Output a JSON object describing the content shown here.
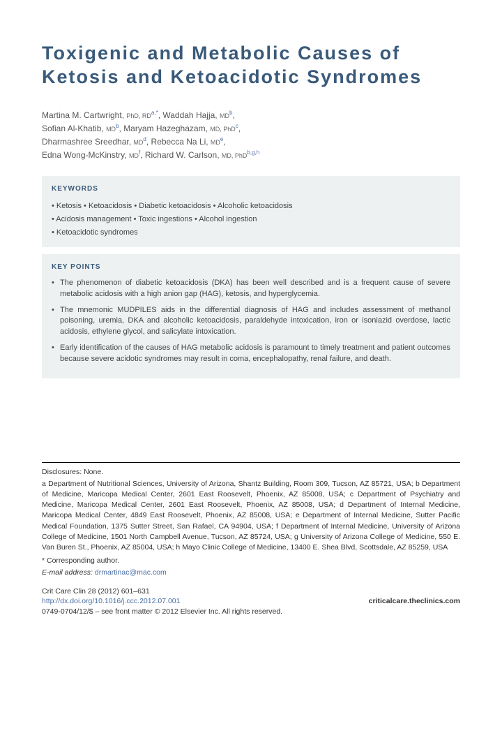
{
  "title": "Toxigenic and Metabolic Causes of Ketosis and Ketoacidotic Syndromes",
  "authors": [
    {
      "name": "Martina M. Cartwright",
      "credentials": "PhD, RD",
      "affiliations": "a,*"
    },
    {
      "name": "Waddah Hajja",
      "credentials": "MD",
      "affiliations": "b"
    },
    {
      "name": "Sofian Al-Khatib",
      "credentials": "MD",
      "affiliations": "b"
    },
    {
      "name": "Maryam Hazeghazam",
      "credentials": "MD, PhD",
      "affiliations": "c"
    },
    {
      "name": "Dharmashree Sreedhar",
      "credentials": "MD",
      "affiliations": "d"
    },
    {
      "name": "Rebecca Na Li",
      "credentials": "MD",
      "affiliations": "e"
    },
    {
      "name": "Edna Wong-McKinstry",
      "credentials": "MD",
      "affiliations": "f"
    },
    {
      "name": "Richard W. Carlson",
      "credentials": "MD, PhD",
      "affiliations": "b,g,h"
    }
  ],
  "keywords_heading": "KEYWORDS",
  "keywords_lines": [
    "• Ketosis • Ketoacidosis • Diabetic ketoacidosis • Alcoholic ketoacidosis",
    "• Acidosis management • Toxic ingestions • Alcohol ingestion",
    "• Ketoacidotic syndromes"
  ],
  "keypoints_heading": "KEY POINTS",
  "keypoints": [
    "The phenomenon of diabetic ketoacidosis (DKA) has been well described and is a frequent cause of severe metabolic acidosis with a high anion gap (HAG), ketosis, and hyperglycemia.",
    "The mnemonic MUDPILES aids in the differential diagnosis of HAG and includes assessment of methanol poisoning, uremia, DKA and alcoholic ketoacidosis, paraldehyde intoxication, iron or isoniazid overdose, lactic acidosis, ethylene glycol, and salicylate intoxication.",
    "Early identification of the causes of HAG metabolic acidosis is paramount to timely treatment and patient outcomes because severe acidotic syndromes may result in coma, encephalopathy, renal failure, and death."
  ],
  "disclosures": "Disclosures: None.",
  "affiliations_text": "a Department of Nutritional Sciences, University of Arizona, Shantz Building, Room 309, Tucson, AZ 85721, USA; b Department of Medicine, Maricopa Medical Center, 2601 East Roosevelt, Phoenix, AZ 85008, USA; c Department of Psychiatry and Medicine, Maricopa Medical Center, 2601 East Roosevelt, Phoenix, AZ 85008, USA; d Department of Internal Medicine, Maricopa Medical Center, 4849 East Roosevelt, Phoenix, AZ 85008, USA; e Department of Internal Medicine, Sutter Pacific Medical Foundation, 1375 Sutter Street, San Rafael, CA 94904, USA; f Department of Internal Medicine, University of Arizona College of Medicine, 1501 North Campbell Avenue, Tucson, AZ 85724, USA; g University of Arizona College of Medicine, 550 E. Van Buren St., Phoenix, AZ 85004, USA; h Mayo Clinic College of Medicine, 13400 E. Shea Blvd, Scottsdale, AZ 85259, USA",
  "corresponding_label": "* Corresponding author.",
  "email_label": "E-mail address:",
  "email": "drmartinac@mac.com",
  "journal_citation": "Crit Care Clin 28 (2012) 601–631",
  "doi": "http://dx.doi.org/10.1016/j.ccc.2012.07.001",
  "journal_site": "criticalcare.theclinics.com",
  "copyright": "0749-0704/12/$ – see front matter © 2012 Elsevier Inc. All rights reserved.",
  "colors": {
    "title": "#3a5a7a",
    "box_bg": "#eef1f2",
    "link": "#4a6fa5",
    "text": "#333333"
  }
}
